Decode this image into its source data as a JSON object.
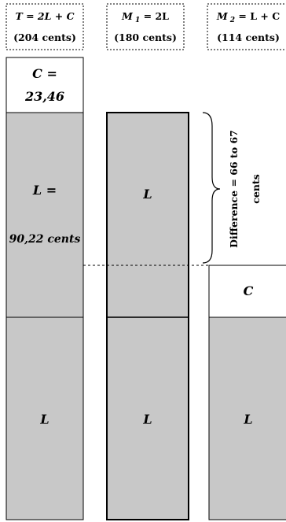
{
  "headers": [
    {
      "formula": "T = 2L + C",
      "cents": "(204 cents)"
    },
    {
      "formula": "M 1 = 2L",
      "cents": "(180 cents)"
    },
    {
      "formula": "M 2 = L + C",
      "cents": "(114 cents)"
    }
  ],
  "col1": {
    "c_line1": "C =",
    "c_line2": "23,46",
    "l_upper_line1": "L =",
    "l_upper_line2": "90,22 cents",
    "l_lower": "L"
  },
  "col2": {
    "l_upper": "L",
    "l_lower": "L"
  },
  "col3": {
    "c": "C",
    "l_lower": "L"
  },
  "difference": {
    "line1": "Difference = 66 to 67",
    "line2": "cents"
  },
  "colors": {
    "fill_l": "#c8c8c8",
    "fill_c": "#ffffff",
    "stroke": "#000000"
  }
}
